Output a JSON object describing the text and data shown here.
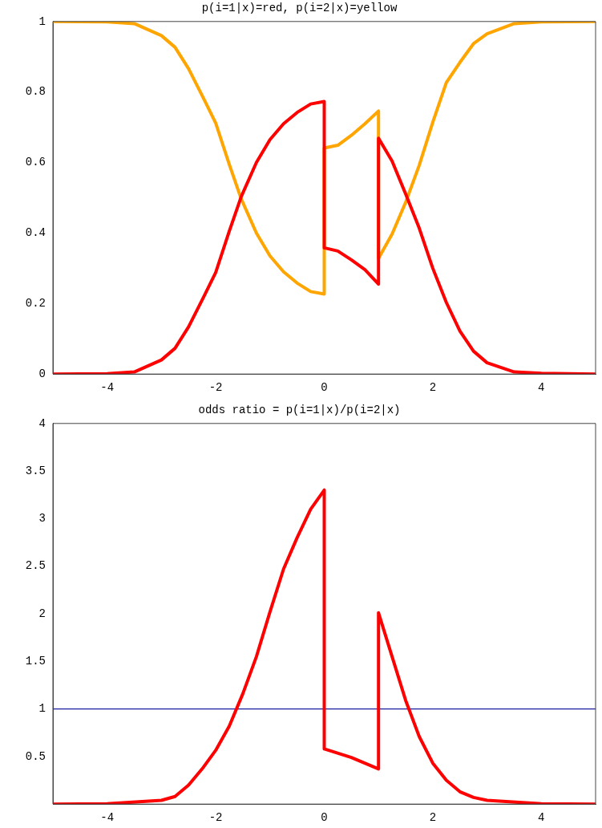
{
  "chart_data": [
    {
      "type": "line",
      "title": "p(i=1|x)=red, p(i=2|x)=yellow",
      "marker": "none",
      "x": [
        -5,
        -4,
        -3.5,
        -3,
        -2.75,
        -2.5,
        -2.25,
        -2,
        -1.75,
        -1.53,
        -1.25,
        -1,
        -0.75,
        -0.5,
        -0.25,
        0,
        0,
        0.25,
        0.5,
        0.75,
        1,
        1,
        1.25,
        1.5,
        1.75,
        2,
        2.25,
        2.5,
        2.75,
        3,
        3.5,
        4,
        5
      ],
      "series": [
        {
          "color": "#ff0000",
          "values": [
            0,
            0.001,
            0.006,
            0.04,
            0.073,
            0.134,
            0.21,
            0.288,
            0.405,
            0.503,
            0.6,
            0.665,
            0.71,
            0.742,
            0.766,
            0.773,
            0.358,
            0.349,
            0.324,
            0.296,
            0.255,
            0.669,
            0.604,
            0.511,
            0.414,
            0.3,
            0.203,
            0.122,
            0.065,
            0.032,
            0.006,
            0.002,
            0
          ]
        },
        {
          "color": "#ffa500",
          "values": [
            1,
            0.999,
            0.994,
            0.96,
            0.927,
            0.866,
            0.79,
            0.712,
            0.595,
            0.497,
            0.4,
            0.335,
            0.29,
            0.258,
            0.234,
            0.227,
            0.641,
            0.649,
            0.677,
            0.71,
            0.746,
            0.328,
            0.397,
            0.487,
            0.592,
            0.714,
            0.827,
            0.884,
            0.937,
            0.965,
            0.994,
            0.999,
            1
          ]
        }
      ],
      "xlim": [
        -5,
        5
      ],
      "xticks": [
        -4,
        -2,
        0,
        2,
        4
      ],
      "ylim": [
        0,
        1
      ],
      "yticks": [
        0,
        0.2,
        0.4,
        0.6,
        0.8,
        1
      ]
    },
    {
      "type": "line",
      "title": "odds ratio = p(i=1|x)/p(i=2|x)",
      "marker": "none",
      "x": [
        -5,
        -4,
        -3,
        -2.75,
        -2.5,
        -2.25,
        -2,
        -1.75,
        -1.5,
        -1.25,
        -1,
        -0.75,
        -0.5,
        -0.25,
        0,
        0,
        0.5,
        1,
        1,
        1.25,
        1.5,
        1.75,
        2,
        2.25,
        2.5,
        2.75,
        3,
        4,
        5
      ],
      "series": [
        {
          "color": "#ff0000",
          "values": [
            0,
            0.003,
            0.04,
            0.08,
            0.2,
            0.37,
            0.565,
            0.82,
            1.16,
            1.55,
            2.02,
            2.47,
            2.8,
            3.1,
            3.3,
            0.58,
            0.49,
            0.37,
            2.01,
            1.55,
            1.09,
            0.71,
            0.43,
            0.25,
            0.13,
            0.07,
            0.04,
            0.003,
            0
          ]
        }
      ],
      "xlim": [
        -5,
        5
      ],
      "xticks": [
        -4,
        -2,
        0,
        2,
        4
      ],
      "ylim": [
        0,
        4
      ],
      "yticks": [
        0.5,
        1,
        1.5,
        2,
        2.5,
        3,
        3.5,
        4
      ],
      "ref_lines": [
        {
          "axis": "y",
          "value": 1,
          "color": "#1c1ca0"
        }
      ]
    }
  ]
}
